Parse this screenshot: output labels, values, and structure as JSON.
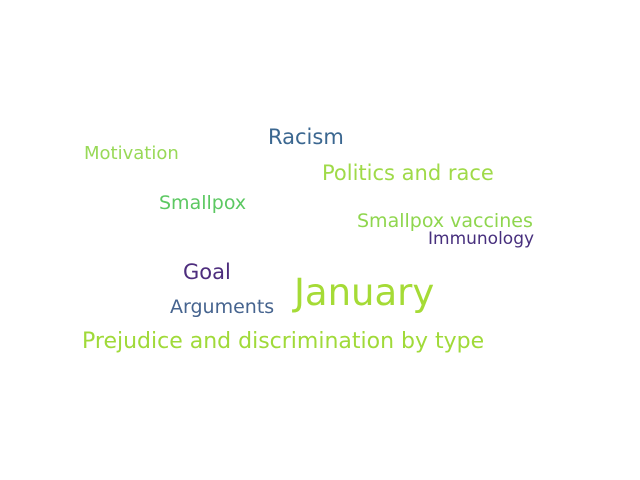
{
  "word_cloud": {
    "words": [
      {
        "text": "Racism",
        "color": "#3b6790"
      },
      {
        "text": "Motivation",
        "color": "#98d957"
      },
      {
        "text": "Politics and race",
        "color": "#9fda48"
      },
      {
        "text": "Smallpox",
        "color": "#5cc862"
      },
      {
        "text": "Smallpox vaccines",
        "color": "#8fd64e"
      },
      {
        "text": "Immunology",
        "color": "#472f7d"
      },
      {
        "text": "Goal",
        "color": "#4d2d7d"
      },
      {
        "text": "January",
        "color": "#a5db36"
      },
      {
        "text": "Arguments",
        "color": "#46648f"
      },
      {
        "text": "Prejudice and discrimination by type",
        "color": "#a0da39"
      }
    ]
  }
}
